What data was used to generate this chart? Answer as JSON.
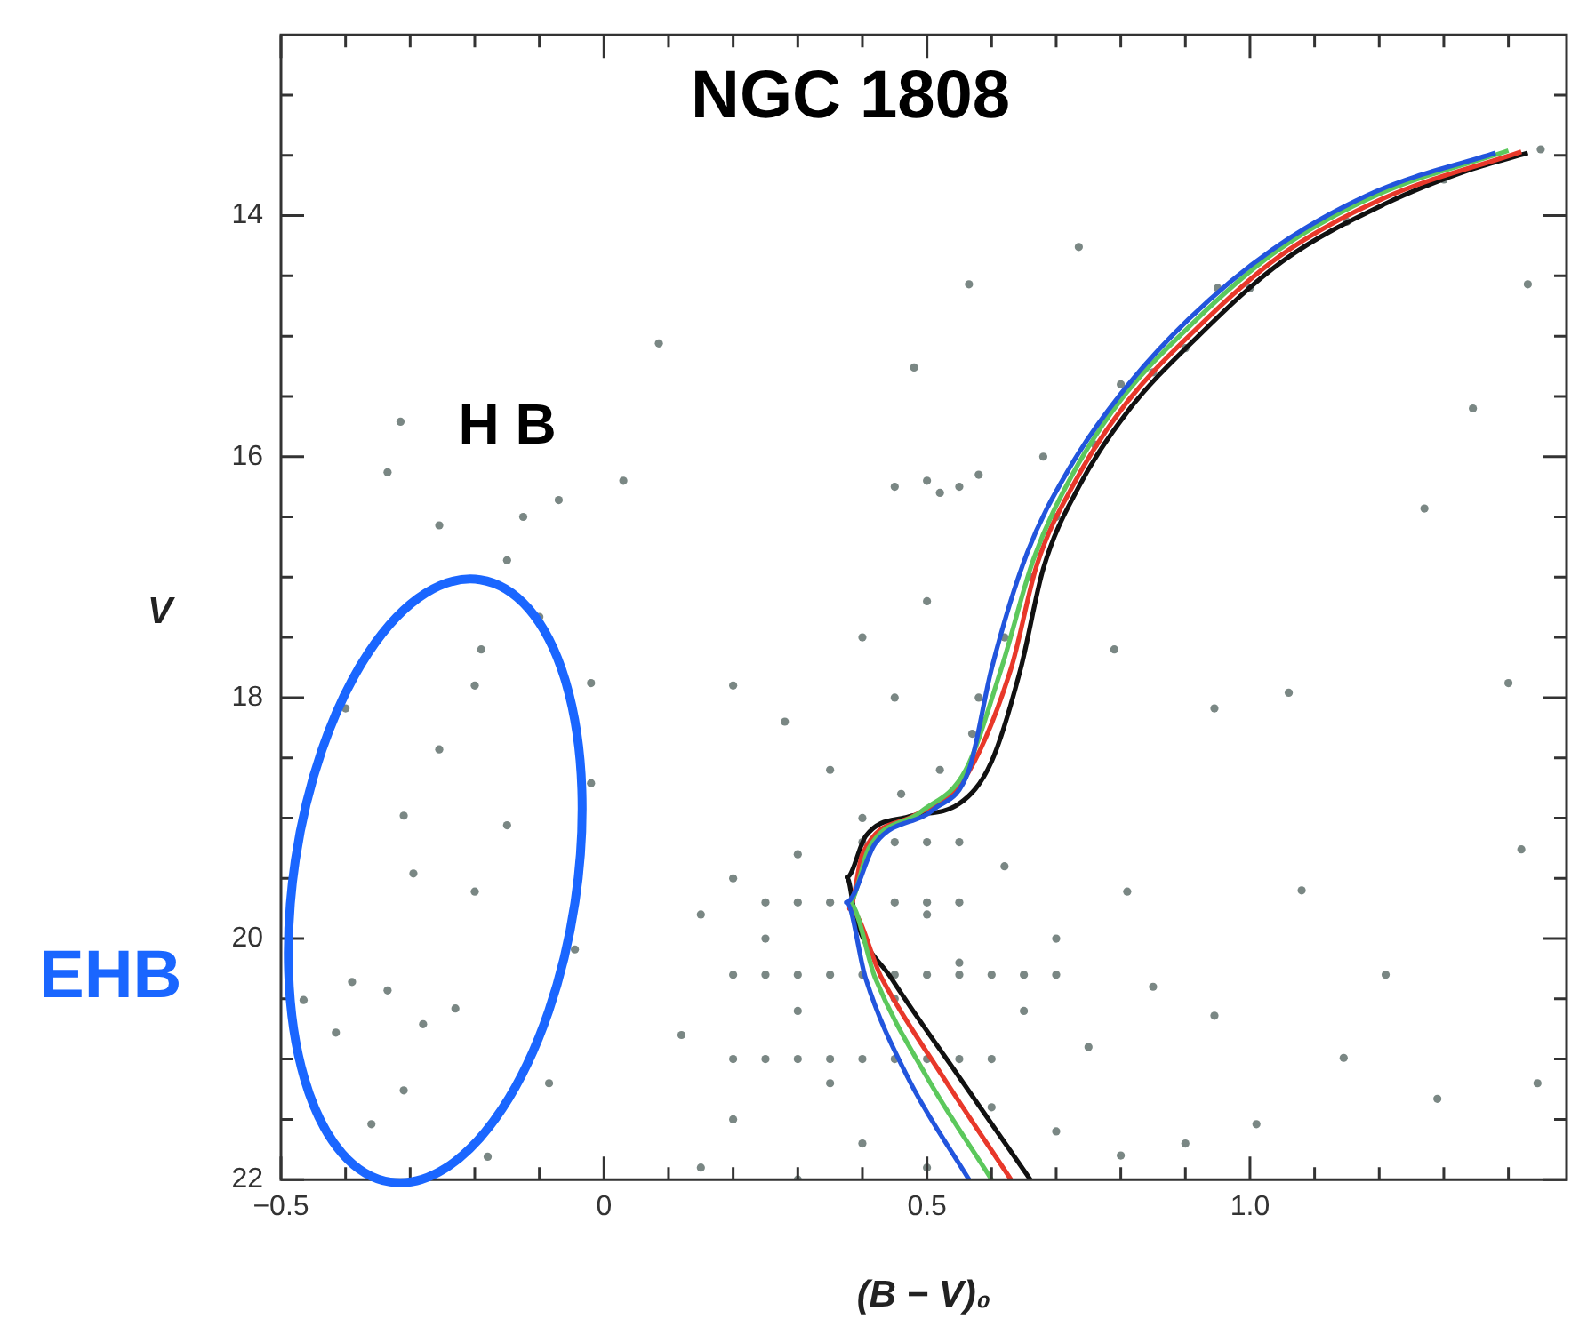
{
  "chart_data": {
    "type": "scatter",
    "title": "NGC 1808",
    "xlabel": "(B − V)₀",
    "ylabel": "V",
    "annotations": [
      "H B",
      "EHB"
    ],
    "xlim": [
      -0.5,
      1.49
    ],
    "ylim": [
      22,
      12.5
    ],
    "xticks": [
      {
        "value": -0.5,
        "label": "−0.5"
      },
      {
        "value": -0.4,
        "label": null
      },
      {
        "value": -0.3,
        "label": null
      },
      {
        "value": -0.2,
        "label": null
      },
      {
        "value": -0.1,
        "label": null
      },
      0,
      {
        "value": 0.1,
        "label": null
      },
      {
        "value": 0.2,
        "label": null
      },
      {
        "value": 0.3,
        "label": null
      },
      {
        "value": 0.4,
        "label": null
      },
      0.5,
      {
        "value": 0.6,
        "label": null
      },
      {
        "value": 0.7,
        "label": null
      },
      {
        "value": 0.8,
        "label": null
      },
      {
        "value": 0.9,
        "label": null
      },
      {
        "value": 1.0,
        "label": "1.0"
      },
      {
        "value": 1.1,
        "label": null
      },
      {
        "value": 1.2,
        "label": null
      },
      {
        "value": 1.3,
        "label": null
      },
      {
        "value": 1.4,
        "label": null
      }
    ],
    "yticks": [
      {
        "value": 13,
        "label": null
      },
      {
        "value": 13.5,
        "label": null
      },
      14,
      {
        "value": 14.5,
        "label": null
      },
      {
        "value": 15,
        "label": null
      },
      {
        "value": 15.5,
        "label": null
      },
      16,
      {
        "value": 16.5,
        "label": null
      },
      {
        "value": 17,
        "label": null
      },
      {
        "value": 17.5,
        "label": null
      },
      18,
      {
        "value": 18.5,
        "label": null
      },
      {
        "value": 19,
        "label": null
      },
      {
        "value": 19.5,
        "label": null
      },
      20,
      {
        "value": 20.5,
        "label": null
      },
      {
        "value": 21,
        "label": null
      },
      {
        "value": 21.5,
        "label": null
      },
      22
    ],
    "grid": false,
    "legend": false,
    "series": [
      {
        "type": "scatter",
        "marker": "circle",
        "color": "#7a8784",
        "x": [
          0.2,
          0.25,
          0.3,
          0.35,
          0.4,
          0.45,
          0.5,
          0.55,
          0.6,
          0.2,
          0.25,
          0.3,
          0.35,
          0.4,
          0.45,
          0.5,
          0.55,
          0.6,
          0.65,
          0.7,
          0.25,
          0.3,
          0.35,
          0.45,
          0.5,
          0.55,
          0.4,
          0.45,
          0.5,
          0.55,
          -0.15,
          -0.19,
          -0.125,
          -0.07,
          0.03,
          -0.2,
          -0.255,
          -0.31,
          -0.295,
          -0.15,
          -0.39,
          -0.335,
          -0.415,
          -0.28,
          -0.23,
          -0.31,
          -0.36,
          -0.18,
          -0.315,
          -0.335,
          -0.255,
          -0.4,
          -0.02,
          0.085,
          -0.045,
          -0.085,
          -0.465,
          -0.2,
          -0.1,
          -0.02,
          0.45,
          0.5,
          0.55,
          0.58,
          0.52,
          1.45,
          1.3,
          1.15,
          1.0,
          0.9,
          0.85,
          0.76,
          0.7,
          0.66,
          0.62,
          0.58,
          0.57,
          0.52,
          0.46,
          0.4,
          0.68,
          0.8,
          0.95,
          0.2,
          0.25,
          0.3,
          0.35,
          0.4,
          0.5,
          0.6,
          0.7,
          0.8,
          0.9,
          0.75,
          0.65,
          0.55,
          0.5,
          0.3,
          0.35,
          0.28,
          0.15,
          0.12,
          0.2,
          0.15,
          0.45,
          0.3,
          0.62,
          0.7,
          0.85,
          0.45,
          0.4,
          0.5,
          0.2,
          0.565,
          0.735,
          1.06,
          1.4,
          1.345,
          1.27,
          1.43,
          1.42,
          1.445,
          1.21,
          1.08,
          1.29,
          1.145,
          0.945,
          1.01,
          0.81,
          0.79,
          0.945,
          0.48
        ],
        "values": [
          21.0,
          21.0,
          21.0,
          21.0,
          21.0,
          21.0,
          21.0,
          21.0,
          21.0,
          20.3,
          20.3,
          20.3,
          20.3,
          20.3,
          20.3,
          20.3,
          20.3,
          20.3,
          20.3,
          20.3,
          19.7,
          19.7,
          19.7,
          19.7,
          19.7,
          19.7,
          19.2,
          19.2,
          19.2,
          19.2,
          16.86,
          17.6,
          16.5,
          16.36,
          16.2,
          17.9,
          18.43,
          18.98,
          19.46,
          19.06,
          20.36,
          20.43,
          20.78,
          20.71,
          20.58,
          21.26,
          21.54,
          21.81,
          15.71,
          16.13,
          16.57,
          18.09,
          17.88,
          15.06,
          20.09,
          21.2,
          20.51,
          19.61,
          17.33,
          18.71,
          16.25,
          16.2,
          16.25,
          16.15,
          16.3,
          13.45,
          13.7,
          14.05,
          14.6,
          15.1,
          15.3,
          15.9,
          16.5,
          17.0,
          17.5,
          18.0,
          18.3,
          18.6,
          18.8,
          19.0,
          16.0,
          15.4,
          14.6,
          19.5,
          20.0,
          20.6,
          21.2,
          21.7,
          21.9,
          21.4,
          21.6,
          21.8,
          21.7,
          20.9,
          20.6,
          20.2,
          19.8,
          19.3,
          18.6,
          18.2,
          19.8,
          20.8,
          21.5,
          21.9,
          20.5,
          22.0,
          19.4,
          20.0,
          20.4,
          18.0,
          17.5,
          17.2,
          17.9,
          14.57,
          14.26,
          17.96,
          17.88,
          15.6,
          16.43,
          14.57,
          19.26,
          21.2,
          20.3,
          19.6,
          21.33,
          20.99,
          20.64,
          21.54,
          19.61,
          17.6,
          18.09,
          15.26
        ]
      },
      {
        "type": "line",
        "marker": "none",
        "color": "#2255dd",
        "x": [
          0.565,
          0.47,
          0.405,
          0.375,
          0.42,
          0.51,
          0.565,
          0.6,
          0.655,
          0.72,
          0.8,
          0.905,
          1.035,
          1.195,
          1.38
        ],
        "values": [
          22,
          21.15,
          20.33,
          19.7,
          19.21,
          18.93,
          18.6,
          17.76,
          16.8,
          16.1,
          15.48,
          14.86,
          14.28,
          13.8,
          13.48
        ]
      },
      {
        "type": "line",
        "marker": "none",
        "color": "#5cc85c",
        "x": [
          0.6,
          0.5,
          0.42,
          0.38,
          0.41,
          0.49,
          0.56,
          0.615,
          0.665,
          0.725,
          0.8,
          0.91,
          1.04,
          1.2,
          1.4
        ],
        "values": [
          22,
          21.15,
          20.33,
          19.7,
          19.25,
          18.95,
          18.6,
          17.76,
          16.85,
          16.15,
          15.53,
          14.9,
          14.3,
          13.82,
          13.46
        ]
      },
      {
        "type": "line",
        "marker": "none",
        "color": "#e8382a",
        "x": [
          0.63,
          0.525,
          0.43,
          0.38,
          0.4,
          0.48,
          0.555,
          0.63,
          0.67,
          0.73,
          0.805,
          0.915,
          1.045,
          1.205,
          1.42
        ],
        "values": [
          22,
          21.15,
          20.33,
          19.75,
          19.3,
          18.98,
          18.7,
          17.76,
          16.9,
          16.2,
          15.58,
          14.95,
          14.34,
          13.86,
          13.47
        ]
      },
      {
        "type": "line",
        "marker": "none",
        "color": "#111111",
        "x": [
          0.66,
          0.55,
          0.445,
          0.39,
          0.376,
          0.405,
          0.47,
          0.55,
          0.6,
          0.645,
          0.68,
          0.735,
          0.81,
          0.92,
          1.05,
          1.21,
          1.34,
          1.43
        ],
        "values": [
          22,
          21.15,
          20.33,
          19.84,
          19.49,
          19.15,
          18.99,
          18.88,
          18.53,
          17.76,
          16.93,
          16.25,
          15.63,
          15.0,
          14.38,
          13.9,
          13.62,
          13.48
        ]
      }
    ]
  }
}
